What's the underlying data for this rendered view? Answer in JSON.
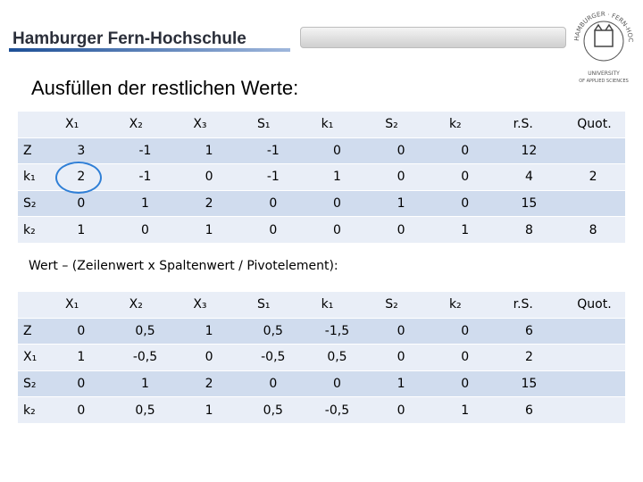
{
  "header": {
    "title": "Hamburger Fern-Hochschule",
    "logo_ring": "HAMBURGER · FERN-HOCHSCHULE · HFH",
    "logo_lines": [
      "UNIVERSITY",
      "OF APPLIED SCIENCES"
    ]
  },
  "slide_title": "Ausfüllen der restlichen Werte:",
  "table1": {
    "columns": [
      "X₁",
      "X₂",
      "X₃",
      "S₁",
      "k₁",
      "S₂",
      "k₂",
      "r.S.",
      "Quot."
    ],
    "rows": [
      {
        "label": "Z",
        "cells": [
          "3",
          "-1",
          "1",
          "-1",
          "0",
          "0",
          "0",
          "12",
          null
        ]
      },
      {
        "label": "k₁",
        "cells": [
          "2",
          "-1",
          "0",
          "-1",
          "1",
          "0",
          "0",
          "4",
          "2"
        ]
      },
      {
        "label": "S₂",
        "cells": [
          "0",
          "1",
          "2",
          "0",
          "0",
          "1",
          "0",
          "15",
          null
        ]
      },
      {
        "label": "k₂",
        "cells": [
          "1",
          "0",
          "1",
          "0",
          "0",
          "0",
          "1",
          "8",
          "8"
        ]
      }
    ]
  },
  "caption": "Wert – (Zeilenwert x Spaltenwert / Pivotelement):",
  "table2": {
    "columns": [
      "X₁",
      "X₂",
      "X₃",
      "S₁",
      "k₁",
      "S₂",
      "k₂",
      "r.S.",
      "Quot."
    ],
    "rows": [
      {
        "label": "Z",
        "cells": [
          "0",
          "0,5",
          "1",
          "0,5",
          "-1,5",
          "0",
          "0",
          "6",
          null
        ]
      },
      {
        "label": "X₁",
        "cells": [
          "1",
          "-0,5",
          "0",
          "-0,5",
          "0,5",
          "0",
          "0",
          "2",
          null
        ]
      },
      {
        "label": "S₂",
        "cells": [
          "0",
          "1",
          "2",
          "0",
          "0",
          "1",
          "0",
          "15",
          null
        ]
      },
      {
        "label": "k₂",
        "cells": [
          "0",
          "0,5",
          "1",
          "0,5",
          "-0,5",
          "0",
          "1",
          "6",
          null
        ]
      }
    ]
  }
}
